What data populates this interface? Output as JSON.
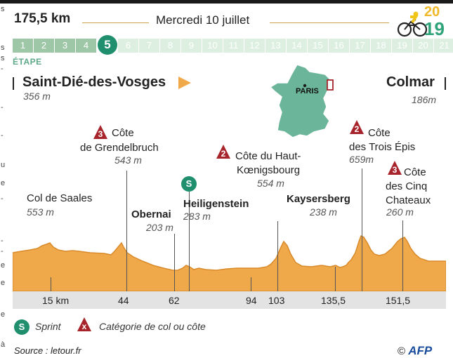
{
  "header": {
    "distance": "175,5 km",
    "date": "Mercredi 10 juillet",
    "year_top": "20",
    "year_bottom": "19"
  },
  "stages": {
    "numbers": [
      "1",
      "2",
      "3",
      "4",
      "5",
      "6",
      "7",
      "8",
      "9",
      "10",
      "11",
      "12",
      "13",
      "14",
      "15",
      "16",
      "17",
      "18",
      "19",
      "20",
      "21"
    ],
    "current": "5",
    "label": "ÉTAPE"
  },
  "start": {
    "name": "Saint-Dié-des-Vosges",
    "altitude": "356 m"
  },
  "finish": {
    "name": "Colmar",
    "altitude": "186m"
  },
  "map": {
    "label": "PARIS"
  },
  "points": {
    "saales": {
      "name": "Col de Saales",
      "altitude": "553 m"
    },
    "grendelbruch": {
      "category": "3",
      "name1": "Côte",
      "name2": "de Grendelbruch",
      "altitude": "543 m"
    },
    "obernai": {
      "name": "Obernai",
      "altitude": "203 m"
    },
    "heiligenstein": {
      "sprint": "S",
      "name": "Heiligenstein",
      "altitude": "283 m"
    },
    "haut_koenigsbourg": {
      "category": "2",
      "name1": "Côte du Haut-",
      "name2": "Kœnigsbourg",
      "altitude": "554 m"
    },
    "kaysersberg": {
      "name": "Kaysersberg",
      "altitude": "238 m"
    },
    "trois_epis": {
      "category": "2",
      "name1": "Côte",
      "name2": "des Trois Épis",
      "altitude": "659m"
    },
    "cinq_chateaux": {
      "category": "3",
      "name1": "Côte",
      "name2": "des Cinq",
      "name3": "Chateaux",
      "altitude": "260 m"
    }
  },
  "km_marks": [
    "15 km",
    "44",
    "62",
    "94",
    "103",
    "135,5",
    "151,5"
  ],
  "legend": {
    "sprint_symbol": "S",
    "sprint_label": "Sprint",
    "category_symbol": "x",
    "category_label": "Catégorie de col ou côte"
  },
  "footer": {
    "source": "Source : letour.fr",
    "copyright": "©",
    "agency": "AFP"
  },
  "colors": {
    "profile": "#f0a94a",
    "profile_line": "#d98a2a",
    "accent_green": "#1f8f6e",
    "category_red": "#a8242c",
    "flag_orange": "#f0a94a"
  }
}
